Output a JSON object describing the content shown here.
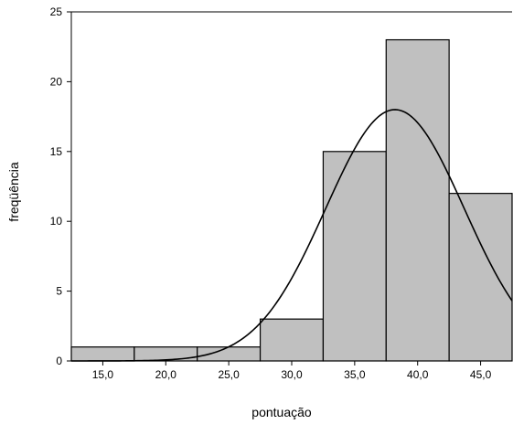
{
  "chart_data": {
    "type": "bar",
    "subtype": "histogram",
    "xlabel": "pontuação",
    "ylabel": "freqüência",
    "ylim": [
      0,
      25
    ],
    "yticks": [
      "0",
      "5",
      "10",
      "15",
      "20",
      "25"
    ],
    "xlim": [
      12.5,
      47.5
    ],
    "xticks": [
      {
        "value": 15,
        "label": "15,0"
      },
      {
        "value": 20,
        "label": "20,0"
      },
      {
        "value": 25,
        "label": "25,0"
      },
      {
        "value": 30,
        "label": "30,0"
      },
      {
        "value": 35,
        "label": "35,0"
      },
      {
        "value": 40,
        "label": "40,0"
      },
      {
        "value": 45,
        "label": "45,0"
      }
    ],
    "bins": [
      {
        "x0": 12.5,
        "x1": 17.5,
        "count": 1
      },
      {
        "x0": 17.5,
        "x1": 22.5,
        "count": 1
      },
      {
        "x0": 22.5,
        "x1": 27.5,
        "count": 1
      },
      {
        "x0": 27.5,
        "x1": 32.5,
        "count": 3
      },
      {
        "x0": 32.5,
        "x1": 37.5,
        "count": 15
      },
      {
        "x0": 37.5,
        "x1": 42.5,
        "count": 23
      },
      {
        "x0": 42.5,
        "x1": 47.5,
        "count": 12
      }
    ],
    "normal_curve": {
      "mean": 38.2,
      "sd": 5.5,
      "peak": 18
    },
    "colors": {
      "bar_fill": "#c0c0c0",
      "bar_stroke": "#000000",
      "curve": "#000000"
    },
    "grid": false,
    "legend": "none"
  }
}
